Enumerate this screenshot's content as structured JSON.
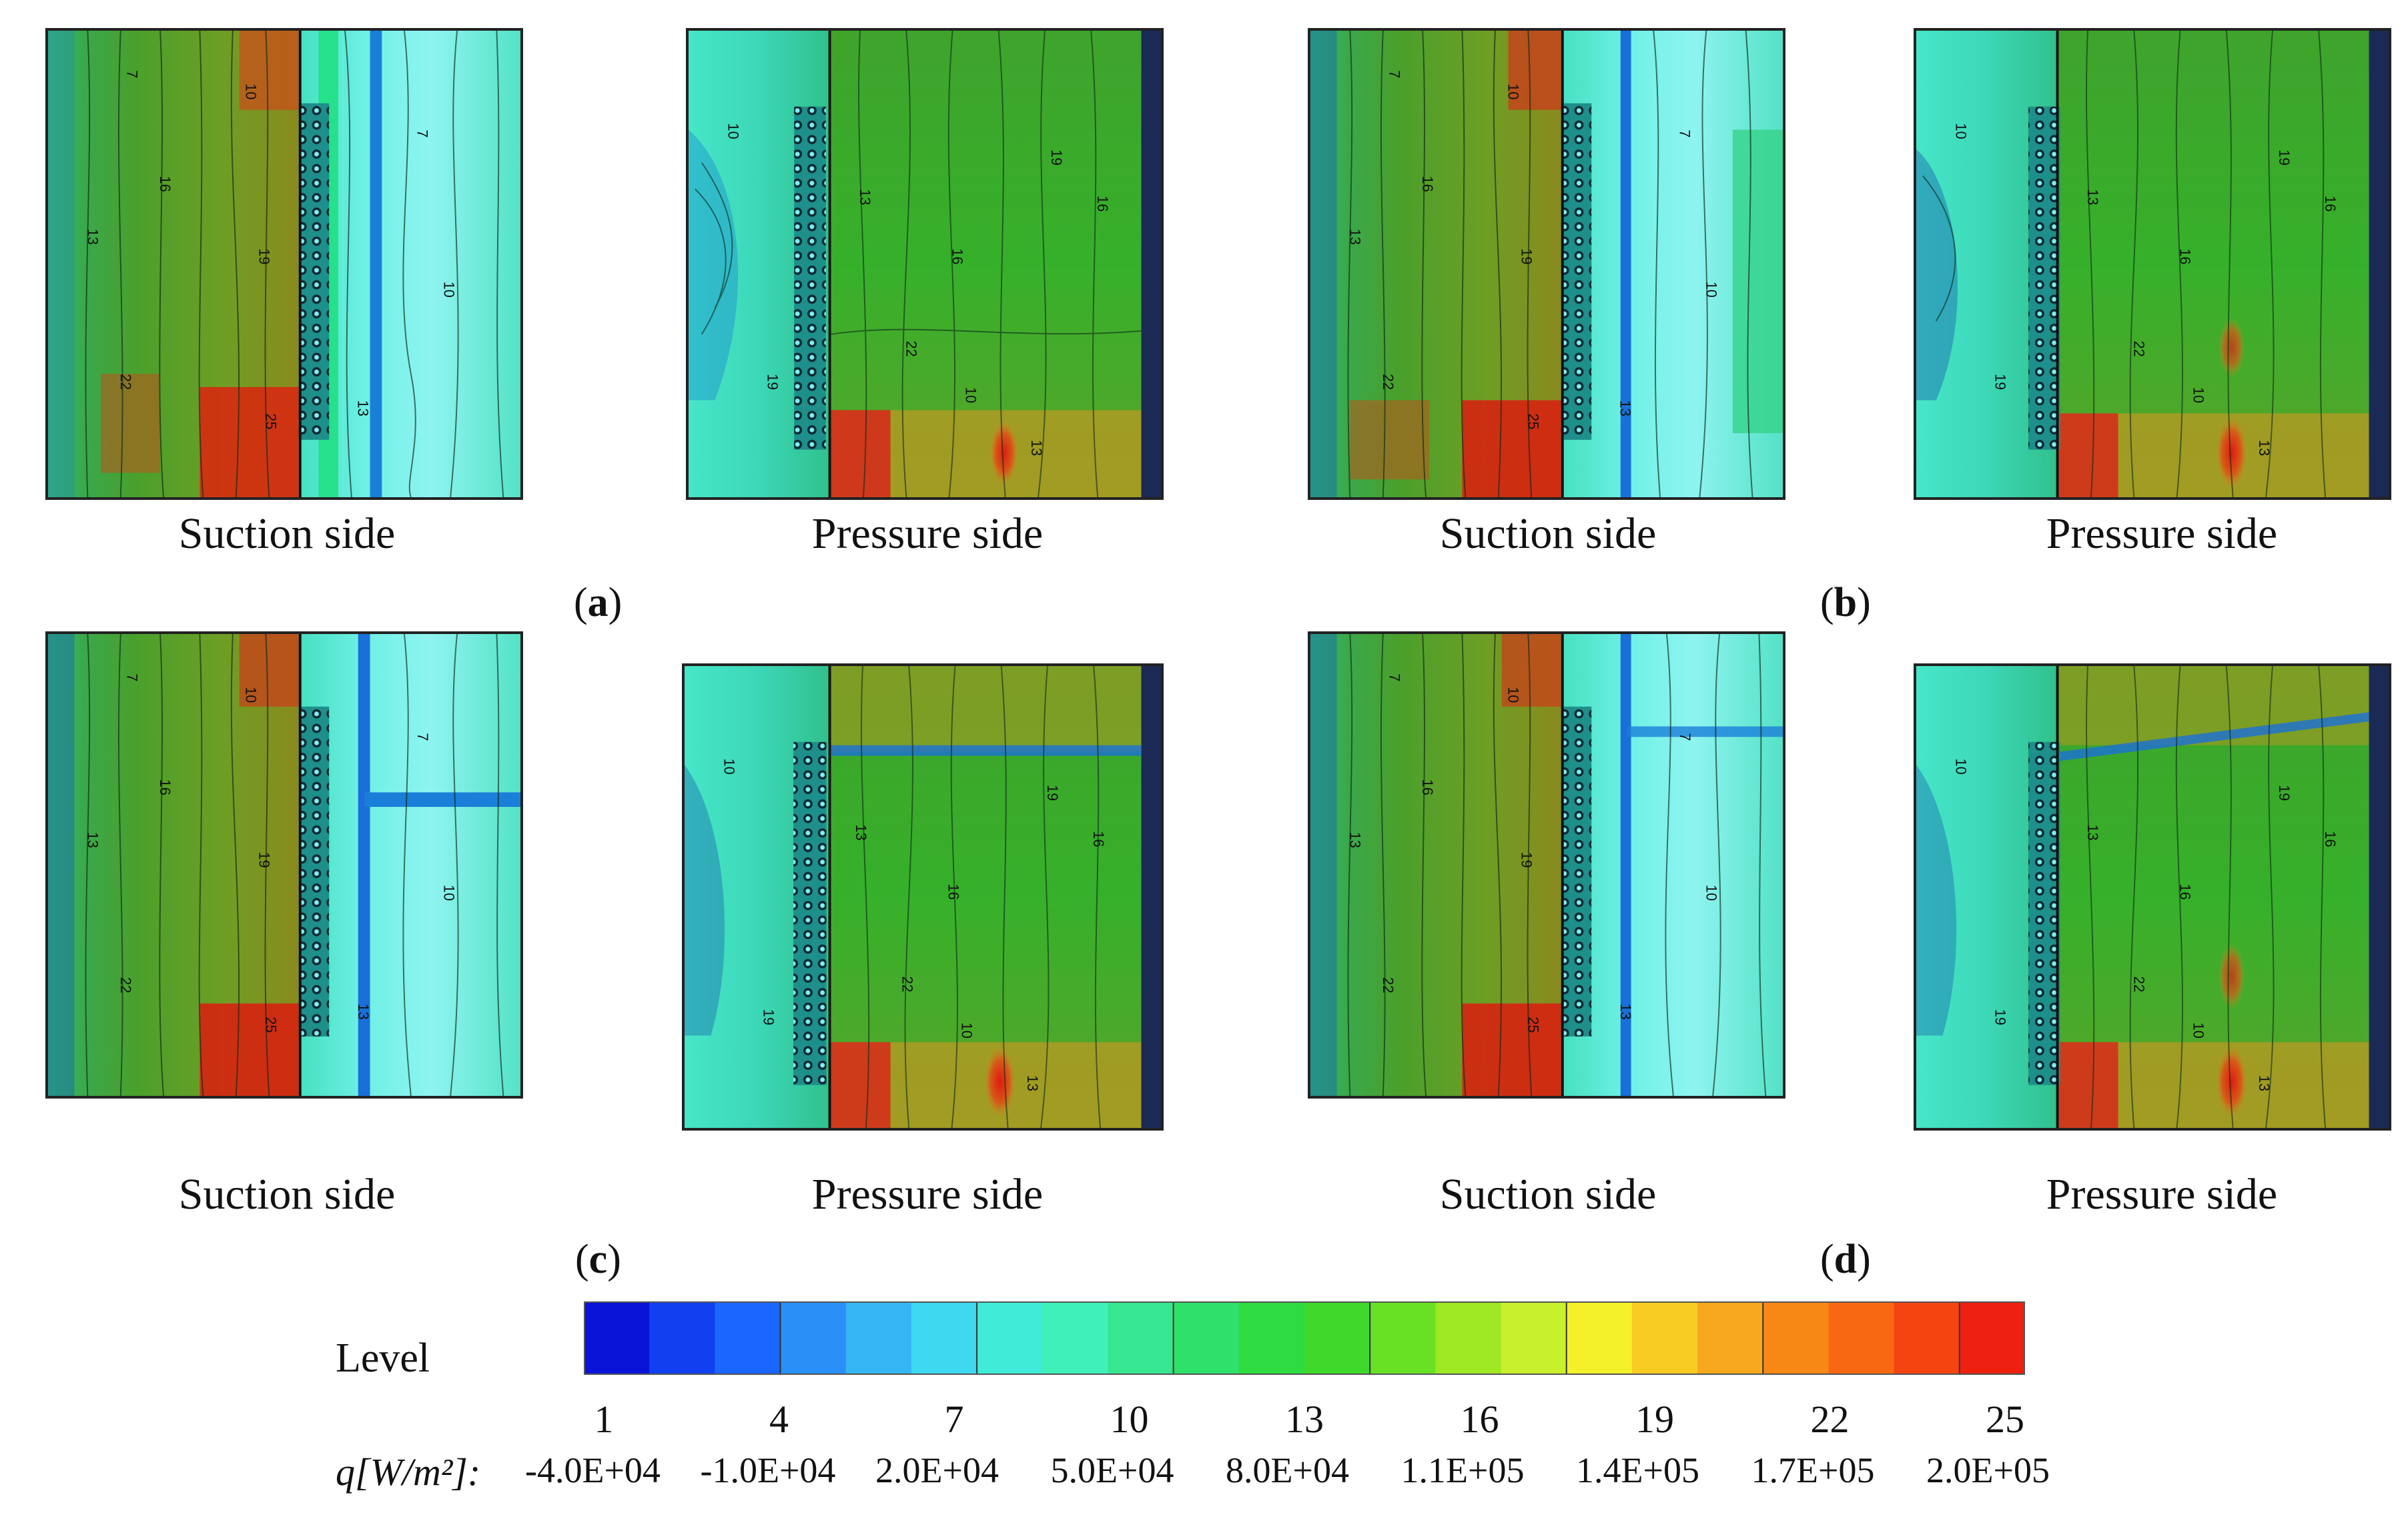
{
  "figure": {
    "caption_suction": "Suction side",
    "caption_pressure": "Pressure side",
    "panel_labels": [
      "a",
      "b",
      "c",
      "d"
    ]
  },
  "legend": {
    "title": "Level",
    "q_label": "q[W/m²]:",
    "levels": [
      1,
      4,
      7,
      10,
      13,
      16,
      19,
      22,
      25
    ],
    "q_values": [
      "-4.0E+04",
      "-1.0E+04",
      "2.0E+04",
      "5.0E+04",
      "8.0E+04",
      "1.1E+05",
      "1.4E+05",
      "1.7E+05",
      "2.0E+05"
    ],
    "colors": [
      "#0a14d8",
      "#1040f0",
      "#1a66ff",
      "#2a90f8",
      "#35b6f2",
      "#3ed8f0",
      "#40ecd8",
      "#3ff0b8",
      "#36e690",
      "#2fe06a",
      "#2edb40",
      "#3ed82a",
      "#68e024",
      "#9ee824",
      "#c8f02c",
      "#f4f02a",
      "#f8cc22",
      "#f8a81c",
      "#f88816",
      "#f86812",
      "#f44410",
      "#ee2010"
    ]
  },
  "contour_labels": {
    "suction": [
      "7",
      "10",
      "13",
      "16",
      "19",
      "22",
      "25"
    ],
    "pressure": [
      "10",
      "13",
      "16",
      "19",
      "22"
    ]
  }
}
